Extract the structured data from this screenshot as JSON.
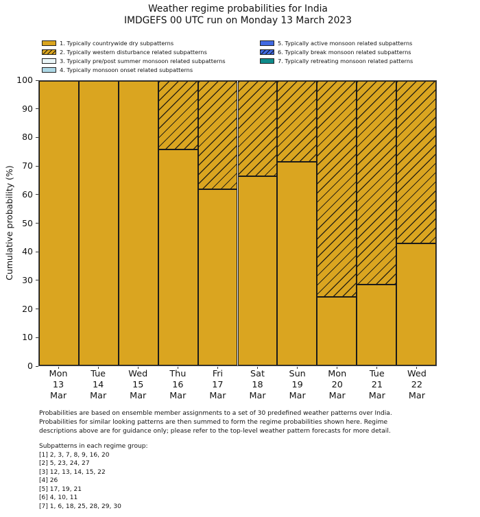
{
  "title": {
    "line1": "Weather regime probabilities for India",
    "line2": "IMDGEFS 00 UTC run on Monday 13 March 2023"
  },
  "legend": {
    "left_column": [
      {
        "label": "1. Typically countrywide dry subpatterns",
        "color": "#DAA520",
        "hatch": false
      },
      {
        "label": "2. Typically western disturbance related subpatterns",
        "color": "#DAA520",
        "hatch": true
      },
      {
        "label": "3. Typically pre/post summer monsoon related subpatterns",
        "color": "#EAF6F8",
        "hatch": false
      },
      {
        "label": "4. Typically monsoon onset related subpatterns",
        "color": "#ADD8E6",
        "hatch": false
      }
    ],
    "right_column": [
      {
        "label": "5. Typically active monsoon related subpatterns",
        "color": "#4169E1",
        "hatch": false
      },
      {
        "label": "6. Typically break monsoon related subpatterns",
        "color": "#4169E1",
        "hatch": true
      },
      {
        "label": "7. Typically retreating monsoon related patterns",
        "color": "#0F8B8B",
        "hatch": false
      }
    ]
  },
  "chart_data": {
    "type": "bar",
    "stacked": true,
    "title": "Weather regime probabilities for India",
    "subtitle": "IMDGEFS 00 UTC run on Monday 13 March 2023",
    "ylabel": "Cumulative probability (%)",
    "ylim": [
      0,
      100
    ],
    "y_ticks": [
      0,
      10,
      20,
      30,
      40,
      50,
      60,
      70,
      80,
      90,
      100
    ],
    "grid": false,
    "legend_position": "top",
    "categories": [
      "Mon 13 Mar",
      "Tue 14 Mar",
      "Wed 15 Mar",
      "Thu 16 Mar",
      "Fri 17 Mar",
      "Sat 18 Mar",
      "Sun 19 Mar",
      "Mon 20 Mar",
      "Tue 21 Mar",
      "Wed 22 Mar"
    ],
    "x_tick_lines": [
      [
        "Mon",
        "13",
        "Mar"
      ],
      [
        "Tue",
        "14",
        "Mar"
      ],
      [
        "Wed",
        "15",
        "Mar"
      ],
      [
        "Thu",
        "16",
        "Mar"
      ],
      [
        "Fri",
        "17",
        "Mar"
      ],
      [
        "Sat",
        "18",
        "Mar"
      ],
      [
        "Sun",
        "19",
        "Mar"
      ],
      [
        "Mon",
        "20",
        "Mar"
      ],
      [
        "Tue",
        "21",
        "Mar"
      ],
      [
        "Wed",
        "22",
        "Mar"
      ]
    ],
    "series": [
      {
        "name": "1. Typically countrywide dry subpatterns",
        "color": "#DAA520",
        "hatch": false,
        "values": [
          100,
          100,
          100,
          76,
          62,
          66.5,
          71.5,
          24,
          28.5,
          43
        ]
      },
      {
        "name": "2. Typically western disturbance related subpatterns",
        "color": "#DAA520",
        "hatch": true,
        "values": [
          0,
          0,
          0,
          24,
          38,
          33.5,
          28.5,
          76,
          71.5,
          57
        ]
      }
    ],
    "bar_edge_color": "#1a1a1a"
  },
  "caption": {
    "lines": [
      "Probabilities are based on ensemble member assignments to a set of 30 predefined weather patterns over India.",
      "Probabilities for similar looking patterns are then summed to form the regime probabilities shown here. Regime",
      "descriptions above are for guidance only; please refer to the top-level weather pattern forecasts for more detail."
    ]
  },
  "subpatterns": {
    "header": "Subpatterns in each regime group:",
    "lines": [
      "[1] 2, 3, 7, 8, 9, 16, 20",
      "[2] 5, 23, 24, 27",
      "[3] 12, 13, 14, 15, 22",
      "[4] 26",
      "[5] 17, 19, 21",
      "[6] 4, 10, 11",
      "[7] 1, 6, 18, 25, 28, 29, 30"
    ]
  }
}
